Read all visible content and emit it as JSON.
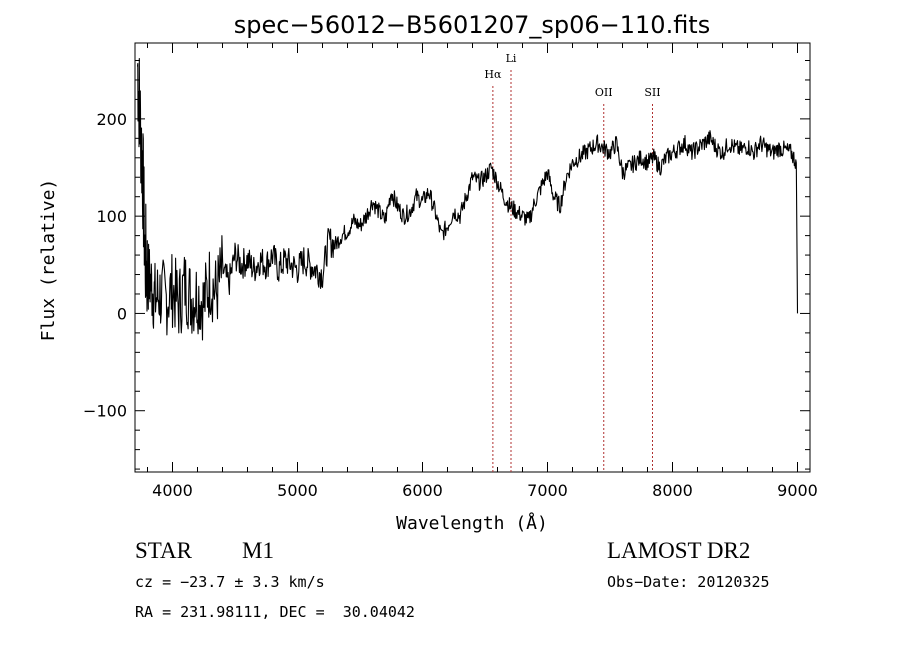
{
  "chart_data": {
    "type": "line",
    "title": "spec−56012−B5601207_sp06−110.fits",
    "xlabel": "Wavelength (Å)",
    "ylabel": "Flux (relative)",
    "xlim": [
      3700,
      9100
    ],
    "ylim": [
      -163,
      278
    ],
    "x_ticks": [
      4000,
      5000,
      6000,
      7000,
      8000,
      9000
    ],
    "y_ticks": [
      -100,
      0,
      100,
      200
    ],
    "y_tick_labels": [
      "−100",
      "0",
      "100",
      "200"
    ],
    "series": [
      {
        "name": "spectrum",
        "x": [
          3720,
          3740,
          3760,
          3780,
          3800,
          3830,
          3860,
          3900,
          3950,
          4000,
          4050,
          4100,
          4150,
          4200,
          4250,
          4300,
          4350,
          4400,
          4450,
          4500,
          4550,
          4600,
          4650,
          4700,
          4750,
          4800,
          4850,
          4900,
          4950,
          5000,
          5050,
          5100,
          5150,
          5200,
          5250,
          5300,
          5350,
          5400,
          5450,
          5500,
          5550,
          5600,
          5650,
          5700,
          5750,
          5800,
          5850,
          5900,
          5950,
          6000,
          6050,
          6100,
          6150,
          6200,
          6250,
          6300,
          6350,
          6400,
          6450,
          6500,
          6550,
          6600,
          6650,
          6700,
          6750,
          6800,
          6850,
          6900,
          6950,
          7000,
          7050,
          7100,
          7150,
          7200,
          7250,
          7300,
          7350,
          7400,
          7450,
          7500,
          7550,
          7600,
          7650,
          7700,
          7750,
          7800,
          7850,
          7900,
          7950,
          8000,
          8050,
          8100,
          8150,
          8200,
          8250,
          8300,
          8350,
          8400,
          8450,
          8500,
          8550,
          8600,
          8650,
          8700,
          8750,
          8800,
          8850,
          8900,
          8950,
          8990
        ],
        "y": [
          255,
          200,
          150,
          60,
          40,
          30,
          15,
          20,
          15,
          25,
          10,
          30,
          15,
          20,
          10,
          35,
          20,
          45,
          30,
          60,
          50,
          55,
          45,
          55,
          50,
          60,
          45,
          55,
          50,
          45,
          55,
          50,
          45,
          40,
          75,
          70,
          80,
          85,
          95,
          90,
          100,
          115,
          105,
          95,
          125,
          110,
          100,
          105,
          120,
          115,
          125,
          105,
          80,
          90,
          105,
          100,
          120,
          140,
          135,
          140,
          150,
          135,
          120,
          110,
          105,
          100,
          95,
          115,
          130,
          145,
          120,
          110,
          140,
          155,
          160,
          165,
          170,
          175,
          170,
          165,
          175,
          145,
          150,
          155,
          160,
          155,
          160,
          150,
          160,
          165,
          170,
          175,
          165,
          170,
          175,
          180,
          170,
          165,
          175,
          170,
          168,
          172,
          165,
          175,
          170,
          165,
          170,
          168,
          165,
          155
        ]
      }
    ],
    "annotations": [
      {
        "label": "Hα",
        "x": 6563
      },
      {
        "label": "Li",
        "x": 6708
      },
      {
        "label": "OII",
        "x": 7450
      },
      {
        "label": "SII",
        "x": 7840
      }
    ],
    "legend": "none",
    "grid": false
  },
  "info": {
    "object_class": "STAR",
    "subclass": "M1",
    "survey": "LAMOST DR2",
    "cz": "cz = −23.7 ± 3.3 km/s",
    "obs_date": "Obs−Date: 20120325",
    "coords": "RA = 231.98111, DEC =  30.04042"
  },
  "colors": {
    "axis": "#000000",
    "line": "#000000",
    "marker_line": "#b03030"
  }
}
